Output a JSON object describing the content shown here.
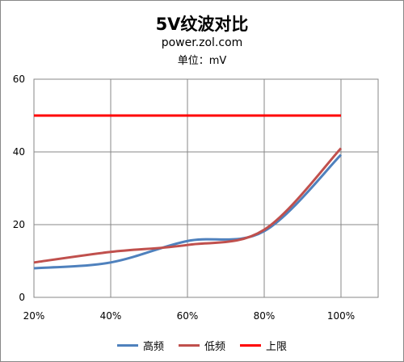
{
  "chart_data": {
    "type": "line",
    "title": "5V纹波对比",
    "subtitle": "power.zol.com",
    "unit_label": "单位：mV",
    "categories": [
      "20%",
      "40%",
      "60%",
      "80%",
      "100%"
    ],
    "ylim": [
      0,
      60
    ],
    "yticks": [
      "0",
      "20",
      "40",
      "60"
    ],
    "grid": true,
    "legend_position": "bottom",
    "series": [
      {
        "name": "高频",
        "values": [
          8,
          9.6,
          15.5,
          18.2,
          39.2
        ],
        "color": "#4F81BD"
      },
      {
        "name": "低频",
        "values": [
          9.6,
          12.5,
          14.4,
          18.6,
          41
        ],
        "color": "#C0504D"
      },
      {
        "name": "上限",
        "values": [
          50,
          50,
          50,
          50,
          50
        ],
        "color": "#FF0000"
      }
    ]
  }
}
